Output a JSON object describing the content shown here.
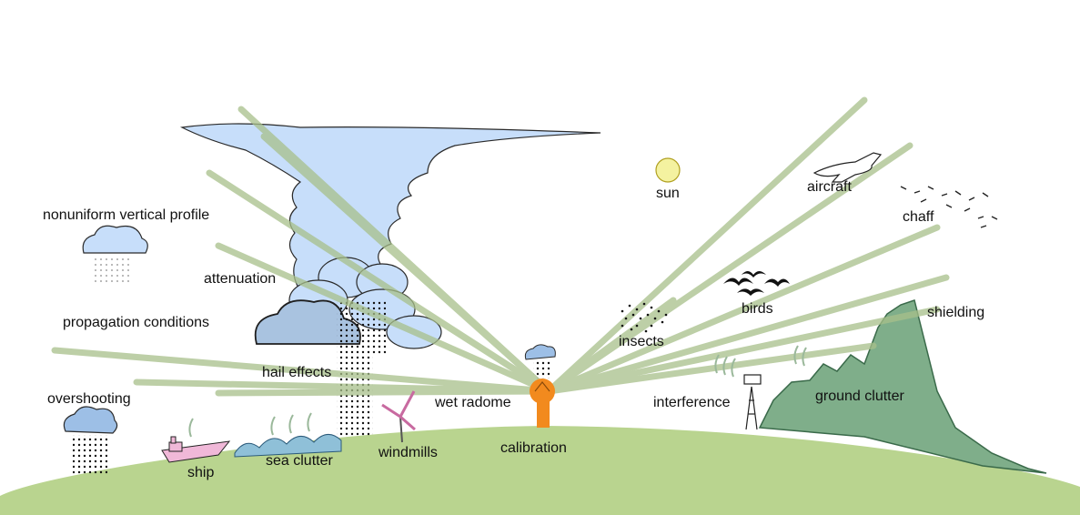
{
  "labels": {
    "nonuniform_vertical_profile": "nonuniform vertical profile",
    "attenuation": "attenuation",
    "propagation_conditions": "propagation conditions",
    "hail_effects": "hail effects",
    "overshooting": "overshooting",
    "ship": "ship",
    "sea_clutter": "sea clutter",
    "windmills": "windmills",
    "wet_radome": "wet radome",
    "calibration": "calibration",
    "sun": "sun",
    "aircraft": "aircraft",
    "chaff": "chaff",
    "birds": "birds",
    "insects": "insects",
    "shielding": "shielding",
    "interference": "interference",
    "ground_clutter": "ground clutter"
  },
  "colors": {
    "ground": "#b9d48f",
    "mountain": "#7fae8a",
    "cloud_blue": "#c7defa",
    "cloud_outline": "#2a2a2a",
    "beam": "#a8c08a",
    "radar": "#f28a1e",
    "sun": "#f4f2a0"
  },
  "icons": [
    "cloud-icon",
    "sun-icon",
    "aircraft-icon",
    "bird-icon",
    "windmill-icon",
    "ship-icon",
    "tower-icon",
    "radar-icon"
  ]
}
